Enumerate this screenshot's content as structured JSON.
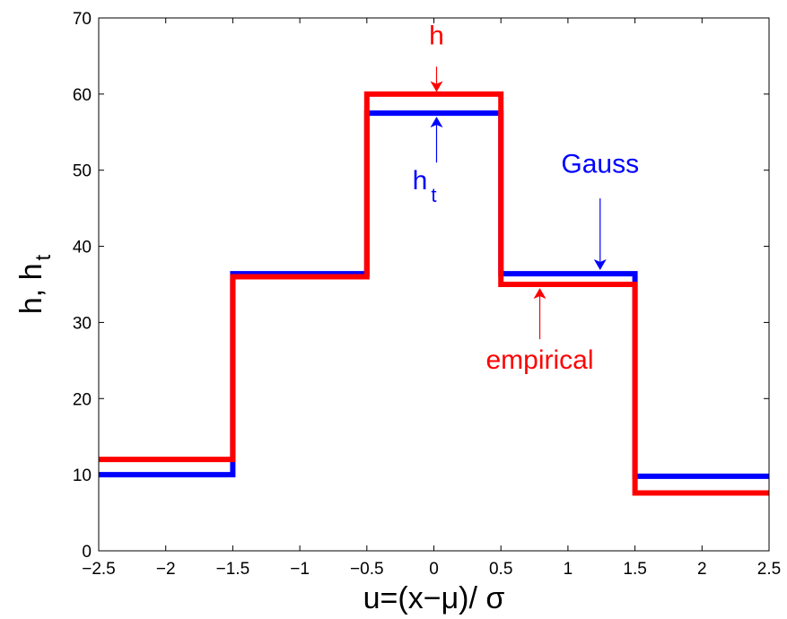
{
  "chart_data": {
    "type": "line",
    "step": true,
    "title": "",
    "xlabel": "u=(x−μ)/ σ",
    "ylabel": "h, h",
    "ylabel_subscript": "t",
    "xlim": [
      -2.5,
      2.5
    ],
    "ylim": [
      0,
      70
    ],
    "xticks": [
      -2.5,
      -2,
      -1.5,
      -1,
      -0.5,
      0,
      0.5,
      1,
      1.5,
      2,
      2.5
    ],
    "xtick_labels": [
      "−2.5",
      "−2",
      "−1.5",
      "−1",
      "−0.5",
      "0",
      "0.5",
      "1",
      "1.5",
      "2",
      "2.5"
    ],
    "yticks": [
      0,
      10,
      20,
      30,
      40,
      50,
      60,
      70
    ],
    "ytick_labels": [
      "0",
      "10",
      "20",
      "30",
      "40",
      "50",
      "60",
      "70"
    ],
    "grid": false,
    "legend": "none",
    "series": [
      {
        "color": "#0000ff",
        "edges": [
          -2.5,
          -1.5,
          -0.5,
          0.5,
          1.5,
          2.5
        ],
        "values": [
          10,
          36.4,
          57.5,
          36.4,
          9.8
        ]
      },
      {
        "color": "#ff0000",
        "edges": [
          -2.5,
          -1.5,
          -0.5,
          0.5,
          1.5,
          2.5
        ],
        "values": [
          12,
          36,
          60,
          35,
          7.6
        ]
      }
    ],
    "annotations": [
      {
        "text": "h",
        "color": "#ff0000",
        "text_x": 0.02,
        "text_y": 66.5,
        "arrow_from": [
          0.02,
          63.6
        ],
        "arrow_to": [
          0.02,
          60.4
        ]
      },
      {
        "text": "h",
        "subscript": "t",
        "color": "#0000ff",
        "text_x": -0.07,
        "text_y": 47.5,
        "arrow_from": [
          0.02,
          51
        ],
        "arrow_to": [
          0.02,
          56.9
        ]
      },
      {
        "text": "Gauss",
        "color": "#0000ff",
        "text_x": 1.24,
        "text_y": 49.7,
        "arrow_from": [
          1.24,
          46.3
        ],
        "arrow_to": [
          1.24,
          37
        ]
      },
      {
        "text": "empirical",
        "color": "#ff0000",
        "text_x": 0.79,
        "text_y": 23.9,
        "arrow_from": [
          0.79,
          27.8
        ],
        "arrow_to": [
          0.79,
          34.4
        ]
      }
    ]
  }
}
